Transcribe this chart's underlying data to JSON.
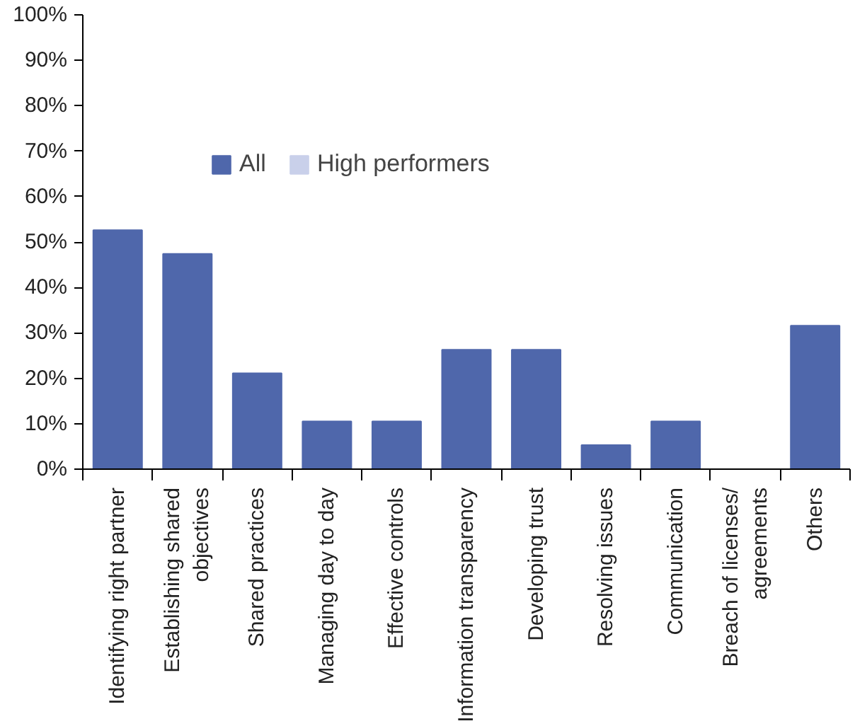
{
  "chart_data": {
    "type": "bar",
    "categories": [
      "Identifying right partner",
      "Establishing shared\nobjectives",
      "Shared practices",
      "Managing day to day",
      "Effective controls",
      "Information transparency",
      "Developing trust",
      "Resolving issues",
      "Communication",
      "Breach of licenses/\nagreements",
      "Others"
    ],
    "series": [
      {
        "name": "All",
        "color": "#4f67ab",
        "values": [
          52.6,
          47.4,
          21.1,
          10.5,
          10.5,
          26.3,
          26.3,
          5.3,
          10.5,
          0,
          31.6
        ]
      },
      {
        "name": "High performers",
        "color": "#c9d0ea",
        "values": [
          null,
          null,
          null,
          null,
          null,
          null,
          null,
          null,
          null,
          null,
          null
        ]
      }
    ],
    "ylim": [
      0,
      100
    ],
    "yticks": [
      {
        "value": 0,
        "label": "0%"
      },
      {
        "value": 10,
        "label": "10%"
      },
      {
        "value": 20,
        "label": "20%"
      },
      {
        "value": 30,
        "label": "30%"
      },
      {
        "value": 40,
        "label": "40%"
      },
      {
        "value": 50,
        "label": "50%"
      },
      {
        "value": 60,
        "label": "60%"
      },
      {
        "value": 70,
        "label": "70%"
      },
      {
        "value": 80,
        "label": "80%"
      },
      {
        "value": 90,
        "label": "90%"
      },
      {
        "value": 100,
        "label": "100%"
      }
    ],
    "grid": false,
    "legend": "top left"
  }
}
